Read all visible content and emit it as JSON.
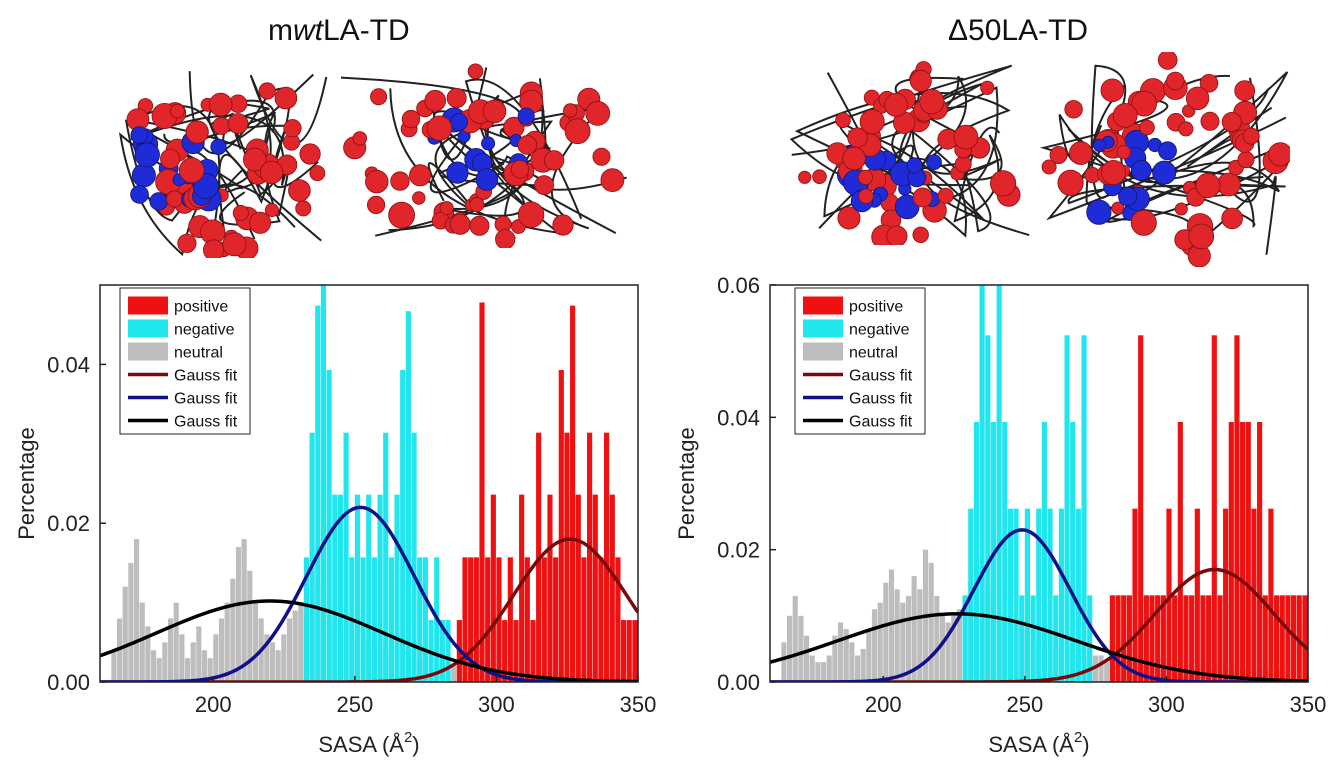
{
  "panels": {
    "left": {
      "title_prefix": "m",
      "title_italic": "wt",
      "title_suffix": "LA-TD"
    },
    "right": {
      "title": "Δ50LA-TD"
    }
  },
  "colors": {
    "positive": "#ee1111",
    "negative": "#22e6ee",
    "neutral": "#bdbdbd",
    "fit_positive": "#7a0a0a",
    "fit_negative": "#10108a",
    "fit_neutral": "#000000",
    "mol_positive": "#e0262a",
    "mol_negative": "#1f2bd6",
    "mol_backbone": "#222222"
  },
  "chart_data": [
    {
      "type": "bar",
      "panel": "mwtLA-TD",
      "xlabel": "SASA (Å²)",
      "ylabel": "Percentage",
      "xlim": [
        160,
        350
      ],
      "ylim": [
        0,
        0.05
      ],
      "xticks": [
        200,
        250,
        300,
        350
      ],
      "yticks": [
        0.0,
        0.02,
        0.04
      ],
      "xtick_labels": [
        "200",
        "250",
        "300",
        "350"
      ],
      "ytick_labels": [
        "0.00",
        "0.02",
        "0.04"
      ],
      "legend": {
        "placement": "top-left",
        "entries": [
          "positive",
          "negative",
          "neutral",
          "Gauss fit",
          "Gauss fit",
          "Gauss fit"
        ]
      },
      "series": [
        {
          "name": "positive",
          "kind": "histogram",
          "bin_width": 2,
          "x": [
            286,
            288,
            290,
            292,
            294,
            296,
            298,
            300,
            302,
            304,
            306,
            308,
            310,
            312,
            314,
            316,
            318,
            320,
            322,
            324,
            326,
            328,
            330,
            332,
            334,
            336,
            338,
            340,
            342,
            344,
            346,
            348
          ],
          "values": [
            0.0078,
            0.0157,
            0.0157,
            0.0157,
            0.0478,
            0.0157,
            0.0236,
            0.0157,
            0.0078,
            0.0157,
            0.0078,
            0.0236,
            0.0157,
            0.0078,
            0.0314,
            0.0157,
            0.0236,
            0.0157,
            0.0393,
            0.0314,
            0.0474,
            0.0236,
            0.0157,
            0.0314,
            0.0236,
            0.0157,
            0.0314,
            0.0236,
            0.0157,
            0.0078,
            0.0078,
            0.0078
          ]
        },
        {
          "name": "negative",
          "kind": "histogram",
          "bin_width": 2,
          "x": [
            232,
            234,
            236,
            238,
            240,
            242,
            244,
            246,
            248,
            250,
            252,
            254,
            256,
            258,
            260,
            262,
            264,
            266,
            268,
            270,
            272,
            274,
            276,
            278,
            280,
            282
          ],
          "values": [
            0.0157,
            0.0314,
            0.0474,
            0.05,
            0.0393,
            0.0236,
            0.0236,
            0.0314,
            0.0157,
            0.0236,
            0.0157,
            0.0236,
            0.0157,
            0.0236,
            0.0314,
            0.0157,
            0.0236,
            0.0393,
            0.0467,
            0.0314,
            0.0157,
            0.0157,
            0.0078,
            0.0157,
            0.0078,
            0.0078
          ]
        },
        {
          "name": "neutral",
          "kind": "histogram",
          "bin_width": 2,
          "x": [
            164,
            166,
            168,
            170,
            172,
            174,
            176,
            178,
            180,
            182,
            184,
            186,
            188,
            190,
            192,
            194,
            196,
            198,
            200,
            202,
            204,
            206,
            208,
            210,
            212,
            214,
            216,
            218,
            220,
            222,
            224,
            226,
            228,
            230,
            232,
            234,
            236,
            238,
            240,
            242,
            244,
            246,
            248,
            250,
            252,
            254,
            256,
            258,
            260,
            262,
            264,
            266,
            268,
            270,
            272,
            274,
            276,
            278,
            280,
            282,
            284,
            286,
            288,
            290,
            292,
            294,
            296,
            298,
            300
          ],
          "values": [
            0.004,
            0.008,
            0.012,
            0.015,
            0.018,
            0.01,
            0.007,
            0.004,
            0.003,
            0.005,
            0.008,
            0.01,
            0.006,
            0.003,
            0.005,
            0.007,
            0.004,
            0.003,
            0.006,
            0.008,
            0.01,
            0.013,
            0.017,
            0.018,
            0.014,
            0.01,
            0.008,
            0.006,
            0.005,
            0.004,
            0.006,
            0.008,
            0.009,
            0.01,
            0.012,
            0.014,
            0.012,
            0.01,
            0.009,
            0.008,
            0.007,
            0.008,
            0.007,
            0.006,
            0.006,
            0.005,
            0.005,
            0.006,
            0.005,
            0.004,
            0.006,
            0.005,
            0.004,
            0.003,
            0.003,
            0.004,
            0.003,
            0.002,
            0.003,
            0.002,
            0.002,
            0.002,
            0.001,
            0.002,
            0.001,
            0.001,
            0.001,
            0.0005,
            0.0005
          ]
        },
        {
          "name": "Gauss fit",
          "kind": "gauss",
          "fit_of": "positive",
          "amp": 0.018,
          "mu": 326,
          "sigma": 20
        },
        {
          "name": "Gauss fit",
          "kind": "gauss",
          "fit_of": "negative",
          "amp": 0.022,
          "mu": 252,
          "sigma": 19
        },
        {
          "name": "Gauss fit",
          "kind": "gauss",
          "fit_of": "neutral",
          "amp": 0.0102,
          "mu": 220,
          "sigma": 40
        }
      ]
    },
    {
      "type": "bar",
      "panel": "Δ50LA-TD",
      "xlabel": "SASA (Å²)",
      "ylabel": "Percentage",
      "xlim": [
        160,
        350
      ],
      "ylim": [
        0,
        0.06
      ],
      "xticks": [
        200,
        250,
        300,
        350
      ],
      "yticks": [
        0.0,
        0.02,
        0.04,
        0.06
      ],
      "xtick_labels": [
        "200",
        "250",
        "300",
        "350"
      ],
      "ytick_labels": [
        "0.00",
        "0.02",
        "0.04",
        "0.06"
      ],
      "legend": {
        "placement": "top-left",
        "entries": [
          "positive",
          "negative",
          "neutral",
          "Gauss fit",
          "Gauss fit",
          "Gauss fit"
        ]
      },
      "series": [
        {
          "name": "positive",
          "kind": "histogram",
          "bin_width": 2,
          "x": [
            280,
            282,
            284,
            286,
            288,
            290,
            292,
            294,
            296,
            298,
            300,
            302,
            304,
            306,
            308,
            310,
            312,
            314,
            316,
            318,
            320,
            322,
            324,
            326,
            328,
            330,
            332,
            334,
            336,
            338,
            340,
            342,
            344,
            346,
            348
          ],
          "values": [
            0.0131,
            0.0131,
            0.0131,
            0.0131,
            0.0262,
            0.0524,
            0.0131,
            0.0131,
            0.0131,
            0.0131,
            0.0262,
            0.0131,
            0.0393,
            0.0131,
            0.0131,
            0.0262,
            0.0131,
            0.0131,
            0.0524,
            0.0131,
            0.0262,
            0.0393,
            0.0524,
            0.0393,
            0.0393,
            0.0262,
            0.0393,
            0.0131,
            0.0262,
            0.0131,
            0.0131,
            0.0131,
            0.0131,
            0.0131,
            0.0131
          ]
        },
        {
          "name": "negative",
          "kind": "histogram",
          "bin_width": 2,
          "x": [
            228,
            230,
            232,
            234,
            236,
            238,
            240,
            242,
            244,
            246,
            248,
            250,
            252,
            254,
            256,
            258,
            260,
            262,
            264,
            266,
            268,
            270,
            272
          ],
          "values": [
            0.0131,
            0.0262,
            0.0393,
            0.06,
            0.0524,
            0.0393,
            0.06,
            0.0393,
            0.0262,
            0.0262,
            0.0131,
            0.0262,
            0.0131,
            0.0262,
            0.0393,
            0.0262,
            0.0131,
            0.0262,
            0.0524,
            0.0393,
            0.0262,
            0.0524,
            0.0131
          ]
        },
        {
          "name": "neutral",
          "kind": "histogram",
          "bin_width": 2,
          "x": [
            164,
            166,
            168,
            170,
            172,
            174,
            176,
            178,
            180,
            182,
            184,
            186,
            188,
            190,
            192,
            194,
            196,
            198,
            200,
            202,
            204,
            206,
            208,
            210,
            212,
            214,
            216,
            218,
            220,
            222,
            224,
            226,
            228,
            230,
            232,
            234,
            236,
            238,
            240,
            242,
            244,
            246,
            248,
            250,
            252,
            254,
            256,
            258,
            260,
            262,
            264,
            266,
            268,
            270,
            272,
            274,
            276,
            278,
            280,
            282,
            284,
            286,
            288,
            290,
            292,
            294,
            296,
            298,
            300,
            302,
            304,
            306,
            308,
            310,
            312,
            314,
            316,
            318,
            320,
            322,
            324,
            326,
            328,
            330,
            332,
            334,
            336,
            338,
            340
          ],
          "values": [
            0.006,
            0.01,
            0.013,
            0.01,
            0.007,
            0.004,
            0.003,
            0.003,
            0.004,
            0.007,
            0.009,
            0.008,
            0.006,
            0.004,
            0.005,
            0.008,
            0.011,
            0.012,
            0.015,
            0.017,
            0.014,
            0.012,
            0.013,
            0.016,
            0.014,
            0.02,
            0.018,
            0.013,
            0.01,
            0.009,
            0.01,
            0.011,
            0.013,
            0.015,
            0.017,
            0.016,
            0.014,
            0.015,
            0.012,
            0.01,
            0.009,
            0.008,
            0.009,
            0.008,
            0.007,
            0.006,
            0.007,
            0.006,
            0.005,
            0.006,
            0.005,
            0.006,
            0.005,
            0.004,
            0.005,
            0.004,
            0.004,
            0.003,
            0.003,
            0.003,
            0.004,
            0.003,
            0.003,
            0.004,
            0.003,
            0.004,
            0.003,
            0.003,
            0.002,
            0.003,
            0.002,
            0.003,
            0.002,
            0.002,
            0.003,
            0.002,
            0.002,
            0.003,
            0.002,
            0.002,
            0.003,
            0.002,
            0.002,
            0.002,
            0.002,
            0.002,
            0.002,
            0.002,
            0.002
          ]
        },
        {
          "name": "Gauss fit",
          "kind": "gauss",
          "fit_of": "positive",
          "amp": 0.017,
          "mu": 317,
          "sigma": 21
        },
        {
          "name": "Gauss fit",
          "kind": "gauss",
          "fit_of": "negative",
          "amp": 0.023,
          "mu": 249,
          "sigma": 17
        },
        {
          "name": "Gauss fit",
          "kind": "gauss",
          "fit_of": "neutral",
          "amp": 0.0103,
          "mu": 226,
          "sigma": 42
        }
      ]
    }
  ]
}
